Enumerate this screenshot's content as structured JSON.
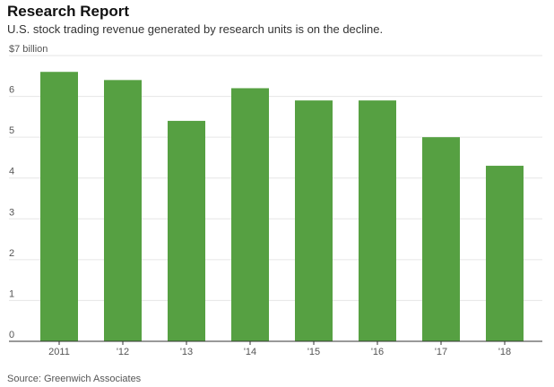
{
  "chart_data": {
    "type": "bar",
    "title": "Research Report",
    "subtitle": "U.S. stock trading revenue generated by research units is on the decline.",
    "source": "Source: Greenwich Associates",
    "categories": [
      "2011",
      "'12",
      "'13",
      "'14",
      "'15",
      "'16",
      "'17",
      "'18"
    ],
    "values": [
      6.6,
      6.4,
      5.4,
      6.2,
      5.9,
      5.9,
      5.0,
      4.3
    ],
    "ylim": [
      0,
      7
    ],
    "yticks": [
      0,
      1,
      2,
      3,
      4,
      5,
      6,
      7
    ],
    "ytick_labels": [
      "0",
      "1",
      "2",
      "3",
      "4",
      "5",
      "6",
      "$7 billion"
    ],
    "xlabel": "",
    "ylabel": "",
    "grid": true,
    "legend": "none",
    "bar_color": "#56a042",
    "grid_color": "#e6e6e6",
    "axis_color": "#333333"
  }
}
